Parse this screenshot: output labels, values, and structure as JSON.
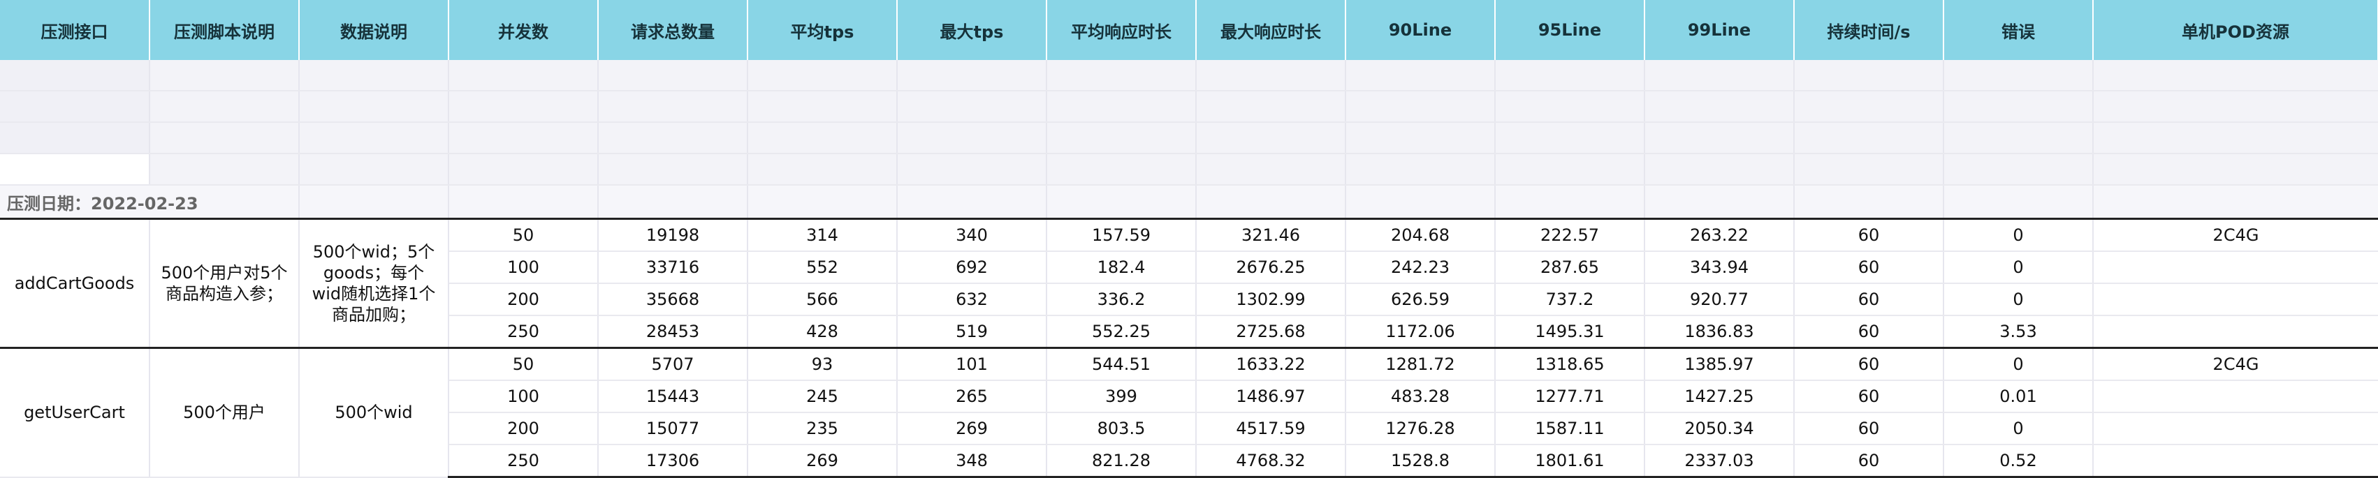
{
  "headers": [
    "压测接口",
    "压测脚本说明",
    "数据说明",
    "并发数",
    "请求总数量",
    "平均tps",
    "最大tps",
    "平均响应时长",
    "最大响应时长",
    "90Line",
    "95Line",
    "99Line",
    "持续时间/s",
    "错误",
    "单机POD资源"
  ],
  "date_label": "压测日期：2022-02-23",
  "groups": [
    {
      "api": "addCartGoods",
      "script_desc": "500个用户对5个商品构造入参；",
      "data_desc": "500个wid；5个goods；每个wid随机选择1个商品加购；",
      "pod": "2C4G",
      "rows": [
        {
          "concurrency": "50",
          "total": "19198",
          "avg_tps": "314",
          "max_tps": "340",
          "avg_rt": "157.59",
          "max_rt": "321.46",
          "line90": "204.68",
          "line95": "222.57",
          "line99": "263.22",
          "duration": "60",
          "errors": "0"
        },
        {
          "concurrency": "100",
          "total": "33716",
          "avg_tps": "552",
          "max_tps": "692",
          "avg_rt": "182.4",
          "max_rt": "2676.25",
          "line90": "242.23",
          "line95": "287.65",
          "line99": "343.94",
          "duration": "60",
          "errors": "0"
        },
        {
          "concurrency": "200",
          "total": "35668",
          "avg_tps": "566",
          "max_tps": "632",
          "avg_rt": "336.2",
          "max_rt": "1302.99",
          "line90": "626.59",
          "line95": "737.2",
          "line99": "920.77",
          "duration": "60",
          "errors": "0"
        },
        {
          "concurrency": "250",
          "total": "28453",
          "avg_tps": "428",
          "max_tps": "519",
          "avg_rt": "552.25",
          "max_rt": "2725.68",
          "line90": "1172.06",
          "line95": "1495.31",
          "line99": "1836.83",
          "duration": "60",
          "errors": "3.53"
        }
      ]
    },
    {
      "api": "getUserCart",
      "script_desc": "500个用户",
      "data_desc": "500个wid",
      "pod": "2C4G",
      "rows": [
        {
          "concurrency": "50",
          "total": "5707",
          "avg_tps": "93",
          "max_tps": "101",
          "avg_rt": "544.51",
          "max_rt": "1633.22",
          "line90": "1281.72",
          "line95": "1318.65",
          "line99": "1385.97",
          "duration": "60",
          "errors": "0"
        },
        {
          "concurrency": "100",
          "total": "15443",
          "avg_tps": "245",
          "max_tps": "265",
          "avg_rt": "399",
          "max_rt": "1486.97",
          "line90": "483.28",
          "line95": "1277.71",
          "line99": "1427.25",
          "duration": "60",
          "errors": "0.01"
        },
        {
          "concurrency": "200",
          "total": "15077",
          "avg_tps": "235",
          "max_tps": "269",
          "avg_rt": "803.5",
          "max_rt": "4517.59",
          "line90": "1276.28",
          "line95": "1587.11",
          "line99": "2050.34",
          "duration": "60",
          "errors": "0"
        },
        {
          "concurrency": "250",
          "total": "17306",
          "avg_tps": "269",
          "max_tps": "348",
          "avg_rt": "821.28",
          "max_rt": "4768.32",
          "line90": "1528.8",
          "line95": "1801.61",
          "line99": "2337.03",
          "duration": "60",
          "errors": "0.52"
        }
      ]
    }
  ]
}
